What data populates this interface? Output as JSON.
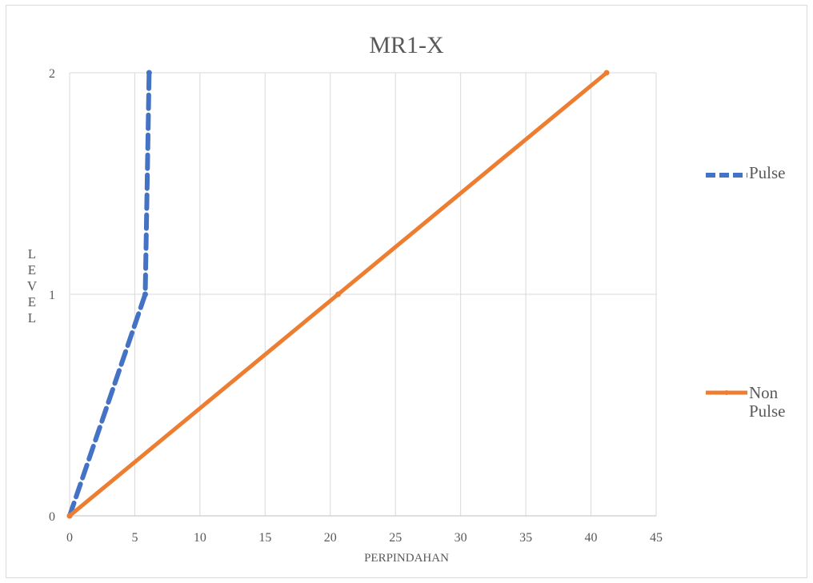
{
  "chart_data": {
    "type": "line",
    "title": "MR1-X",
    "xlabel": "PERPINDAHAN",
    "ylabel": "LEVEL",
    "xlim": [
      0,
      45
    ],
    "ylim": [
      0,
      2
    ],
    "x_ticks": [
      "0",
      "5",
      "10",
      "15",
      "20",
      "25",
      "30",
      "35",
      "40",
      "45"
    ],
    "y_ticks": [
      "0",
      "1",
      "2"
    ],
    "grid": true,
    "legend_position": "right",
    "series": [
      {
        "name": "Pulse",
        "color": "#4472C4",
        "style": "dashed",
        "points": [
          [
            0,
            0
          ],
          [
            5.8,
            1
          ],
          [
            6.1,
            2
          ]
        ]
      },
      {
        "name": "Non Pulse",
        "color": "#ED7D31",
        "style": "solid",
        "points": [
          [
            0,
            0
          ],
          [
            20.6,
            1
          ],
          [
            41.2,
            2
          ]
        ]
      }
    ]
  },
  "legend": {
    "pulse_label": "Pulse",
    "nonpulse_label_line1": "Non",
    "nonpulse_label_line2": "Pulse"
  }
}
